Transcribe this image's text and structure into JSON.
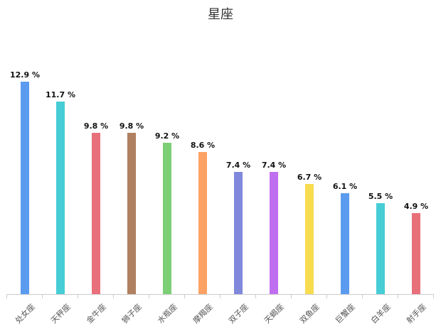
{
  "title": "星座",
  "chart_data": {
    "type": "bar",
    "title": "星座",
    "xlabel": "",
    "ylabel": "",
    "value_suffix": " %",
    "categories": [
      "处女座",
      "天秤座",
      "金牛座",
      "狮子座",
      "水瓶座",
      "摩羯座",
      "双子座",
      "天蝎座",
      "双鱼座",
      "巨蟹座",
      "白羊座",
      "射手座"
    ],
    "values": [
      12.9,
      11.7,
      9.8,
      9.8,
      9.2,
      8.6,
      7.4,
      7.4,
      6.7,
      6.1,
      5.5,
      4.9
    ],
    "colors": [
      "#5b9bef",
      "#46cdd6",
      "#e8707a",
      "#b08060",
      "#7ccf74",
      "#fba264",
      "#8088dc",
      "#c06ef0",
      "#f8dc50",
      "#5b9bef",
      "#46cdd6",
      "#e8707a"
    ],
    "ylim": [
      0,
      14
    ],
    "grid": false,
    "legend": false
  }
}
